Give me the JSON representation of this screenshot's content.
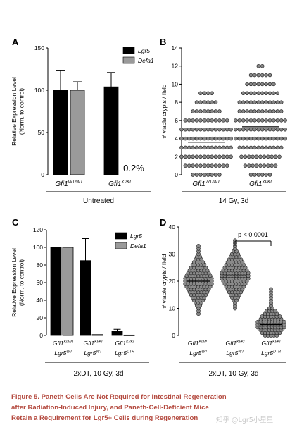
{
  "figure": {
    "caption_lines": [
      "Figure 5.  Paneth Cells Are Not Required for Intestinal Regeneration",
      "after Radiation-Induced Injury, and Paneth-Cell-Deficient Mice",
      "Retain a Requirement for Lgr5+ Cells during Regeneration"
    ],
    "watermark": "知乎 @Lgr5小星星"
  },
  "chart_data": [
    {
      "panel": "A",
      "type": "bar",
      "ylabel": [
        "Relative Expression Level",
        "(Norm. to control)"
      ],
      "ylim": [
        0,
        150
      ],
      "yticks": [
        0,
        50,
        100,
        150
      ],
      "categories": [
        {
          "base": "Gfi1",
          "sup": "WT/WT"
        },
        {
          "base": "Gfi1",
          "sup": "KI/KI"
        }
      ],
      "series": [
        {
          "name": "Lgr5",
          "color": "#000000",
          "values": [
            100,
            104
          ],
          "errors": [
            23,
            17
          ]
        },
        {
          "name": "Defa1",
          "color": "#9a9a9a",
          "values": [
            100,
            0.2
          ],
          "errors": [
            10,
            0
          ]
        }
      ],
      "annotations": [
        {
          "text": "0.2%",
          "category": 1,
          "series": 1
        }
      ],
      "group_label": "Untreated",
      "legend": "top-right"
    },
    {
      "panel": "B",
      "type": "scatter",
      "ylabel": [
        "# viable crypts / field"
      ],
      "ylim": [
        0,
        14
      ],
      "yticks": [
        0,
        2,
        4,
        6,
        8,
        10,
        12,
        14
      ],
      "categories": [
        {
          "base": "Gfi1",
          "sup": "WT/WT"
        },
        {
          "base": "Gfi1",
          "sup": "KI/KI"
        }
      ],
      "columns": [
        {
          "counts_per_value": [
            8,
            12,
            14,
            14,
            14,
            14,
            12,
            8,
            6,
            4
          ],
          "max": 9,
          "mean": 3.6
        },
        {
          "counts_per_value": [
            6,
            9,
            11,
            12,
            14,
            14,
            14,
            12,
            12,
            10,
            8,
            6,
            2
          ],
          "max": 12,
          "mean": 5.3
        }
      ],
      "group_label": "14 Gy, 3d"
    },
    {
      "panel": "C",
      "type": "bar",
      "ylabel": [
        "Relative Expression Level",
        "(Norm. to control)"
      ],
      "ylim": [
        0,
        120
      ],
      "yticks": [
        0,
        20,
        40,
        60,
        80,
        100,
        120
      ],
      "categories": [
        {
          "lines": [
            {
              "base": "Gfi1",
              "sup": "KI/WT"
            },
            {
              "base": "Lgr5",
              "sup": "WT"
            }
          ]
        },
        {
          "lines": [
            {
              "base": "Gfi1",
              "sup": "KI/KI"
            },
            {
              "base": "Lgr5",
              "sup": "WT"
            }
          ]
        },
        {
          "lines": [
            {
              "base": "Gfi1",
              "sup": "KI/KI"
            },
            {
              "base": "Lgr5",
              "sup": "DTR"
            }
          ]
        }
      ],
      "series": [
        {
          "name": "Lgr5",
          "color": "#000000",
          "values": [
            100,
            85,
            5
          ],
          "errors": [
            6,
            25,
            2
          ]
        },
        {
          "name": "Defa1",
          "color": "#9a9a9a",
          "values": [
            100,
            1,
            0.5
          ],
          "errors": [
            6,
            0,
            0
          ]
        }
      ],
      "group_label": "2xDT, 10 Gy, 3d",
      "legend": "top-right"
    },
    {
      "panel": "D",
      "type": "scatter",
      "ylabel": [
        "# viable crypts / field"
      ],
      "ylim": [
        0,
        40
      ],
      "yticks": [
        0,
        10,
        20,
        30,
        40
      ],
      "categories": [
        {
          "lines": [
            {
              "base": "Gfi1",
              "sup": "KI/WT"
            },
            {
              "base": "Lgr5",
              "sup": "WT"
            }
          ]
        },
        {
          "lines": [
            {
              "base": "Gfi1",
              "sup": "KI/KI"
            },
            {
              "base": "Lgr5",
              "sup": "WT"
            }
          ]
        },
        {
          "lines": [
            {
              "base": "Gfi1",
              "sup": "KI/KI"
            },
            {
              "base": "Lgr5",
              "sup": "DTR"
            }
          ]
        }
      ],
      "columns": [
        {
          "min": 8,
          "max": 33,
          "mean": 20,
          "sd": 5
        },
        {
          "min": 10,
          "max": 35,
          "mean": 22,
          "sd": 5
        },
        {
          "min": 0,
          "max": 17,
          "mean": 4,
          "sd": 3.5
        }
      ],
      "significance": {
        "text": "p < 0.0001",
        "from": 1,
        "to": 2
      },
      "group_label": "2xDT, 10 Gy, 3d"
    }
  ]
}
